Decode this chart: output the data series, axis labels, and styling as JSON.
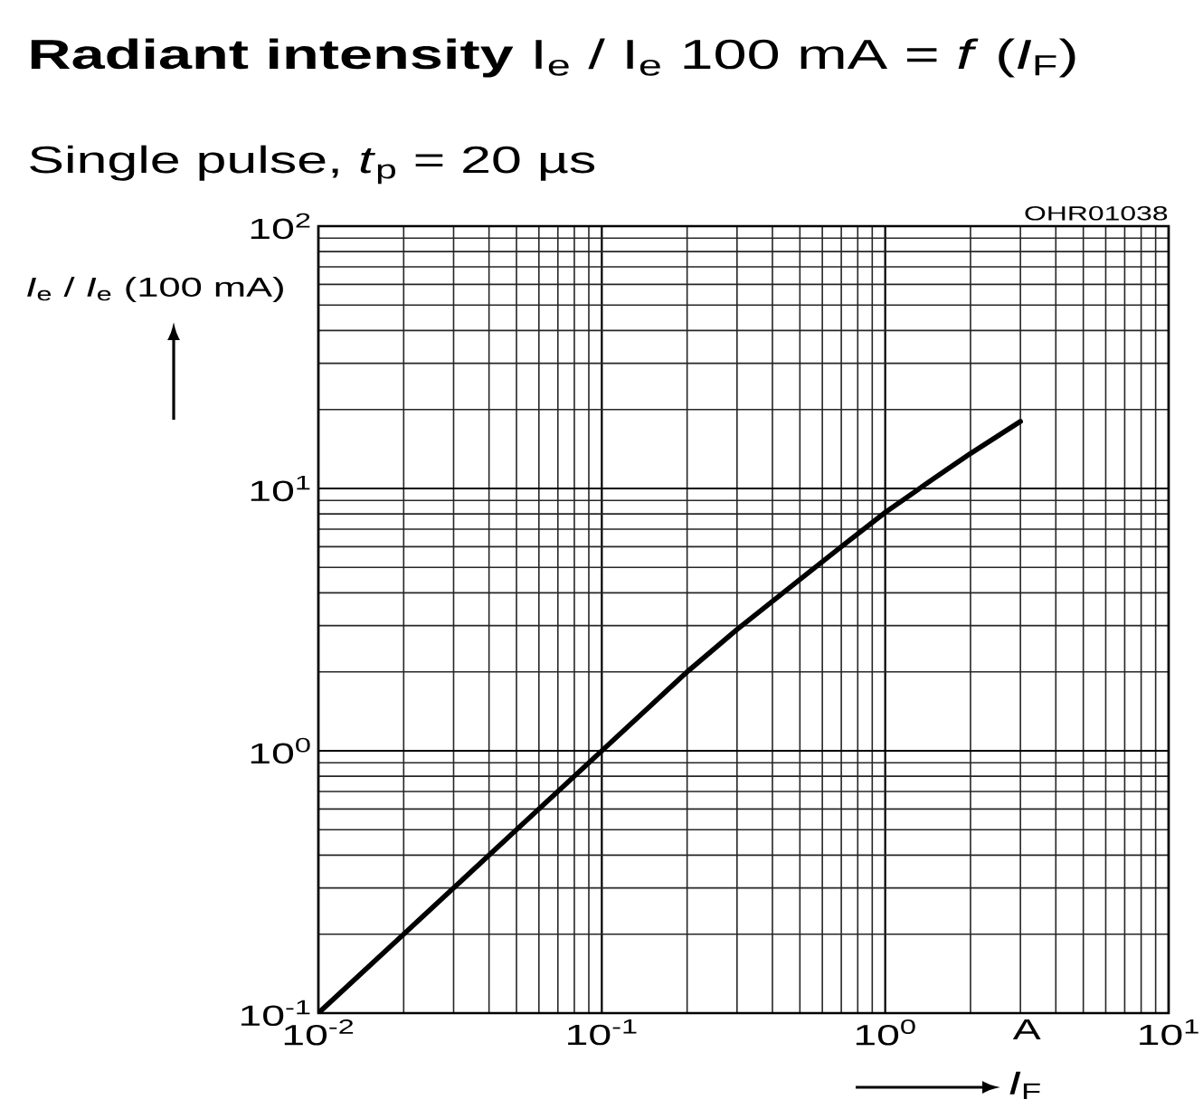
{
  "chart_data": {
    "type": "line",
    "title": "**Radiant intensity** I$_{e}$ / I$_{e}$ 100 mA = *f* (*I*$_{F}$)",
    "subtitle": "Single pulse, *t*$_{p}$ = 20 µs",
    "xlabel": "*I*$_{F}$",
    "ylabel": "*I*$_{e}$ / *I*$_{e}$ (100 mA)",
    "annotations": [
      "OHR01038"
    ],
    "x": [
      0.01,
      0.02,
      0.05,
      0.1,
      0.15,
      0.2,
      0.3,
      0.5,
      0.7,
      1,
      1.5,
      2,
      3
    ],
    "values": [
      0.1,
      0.2,
      0.5,
      1,
      1.5,
      2,
      2.9,
      4.5,
      6,
      8.1,
      11,
      13.6,
      18
    ],
    "color": "#000000",
    "log": "xy",
    "grid": true,
    "marker": "none",
    "line_style": "solid",
    "xlim": [
      0.01,
      10
    ],
    "ylim": [
      0.1,
      100
    ],
    "xticks": [
      {
        "value": 0.01,
        "label": "10$^{-2}$"
      },
      {
        "value": 0.1,
        "label": "10$^{-1}$"
      },
      {
        "value": 1,
        "label": "10$^{0}$"
      },
      {
        "value": 3.16,
        "label": "A"
      },
      {
        "value": 10,
        "label": "10$^{1}$"
      }
    ],
    "yticks": [
      {
        "value": 0.1,
        "label": "10$^{-1}$"
      },
      {
        "value": 1,
        "label": "10$^{0}$"
      },
      {
        "value": 10,
        "label": "10$^{1}$"
      },
      {
        "value": 100,
        "label": "10$^{2}$"
      }
    ]
  }
}
